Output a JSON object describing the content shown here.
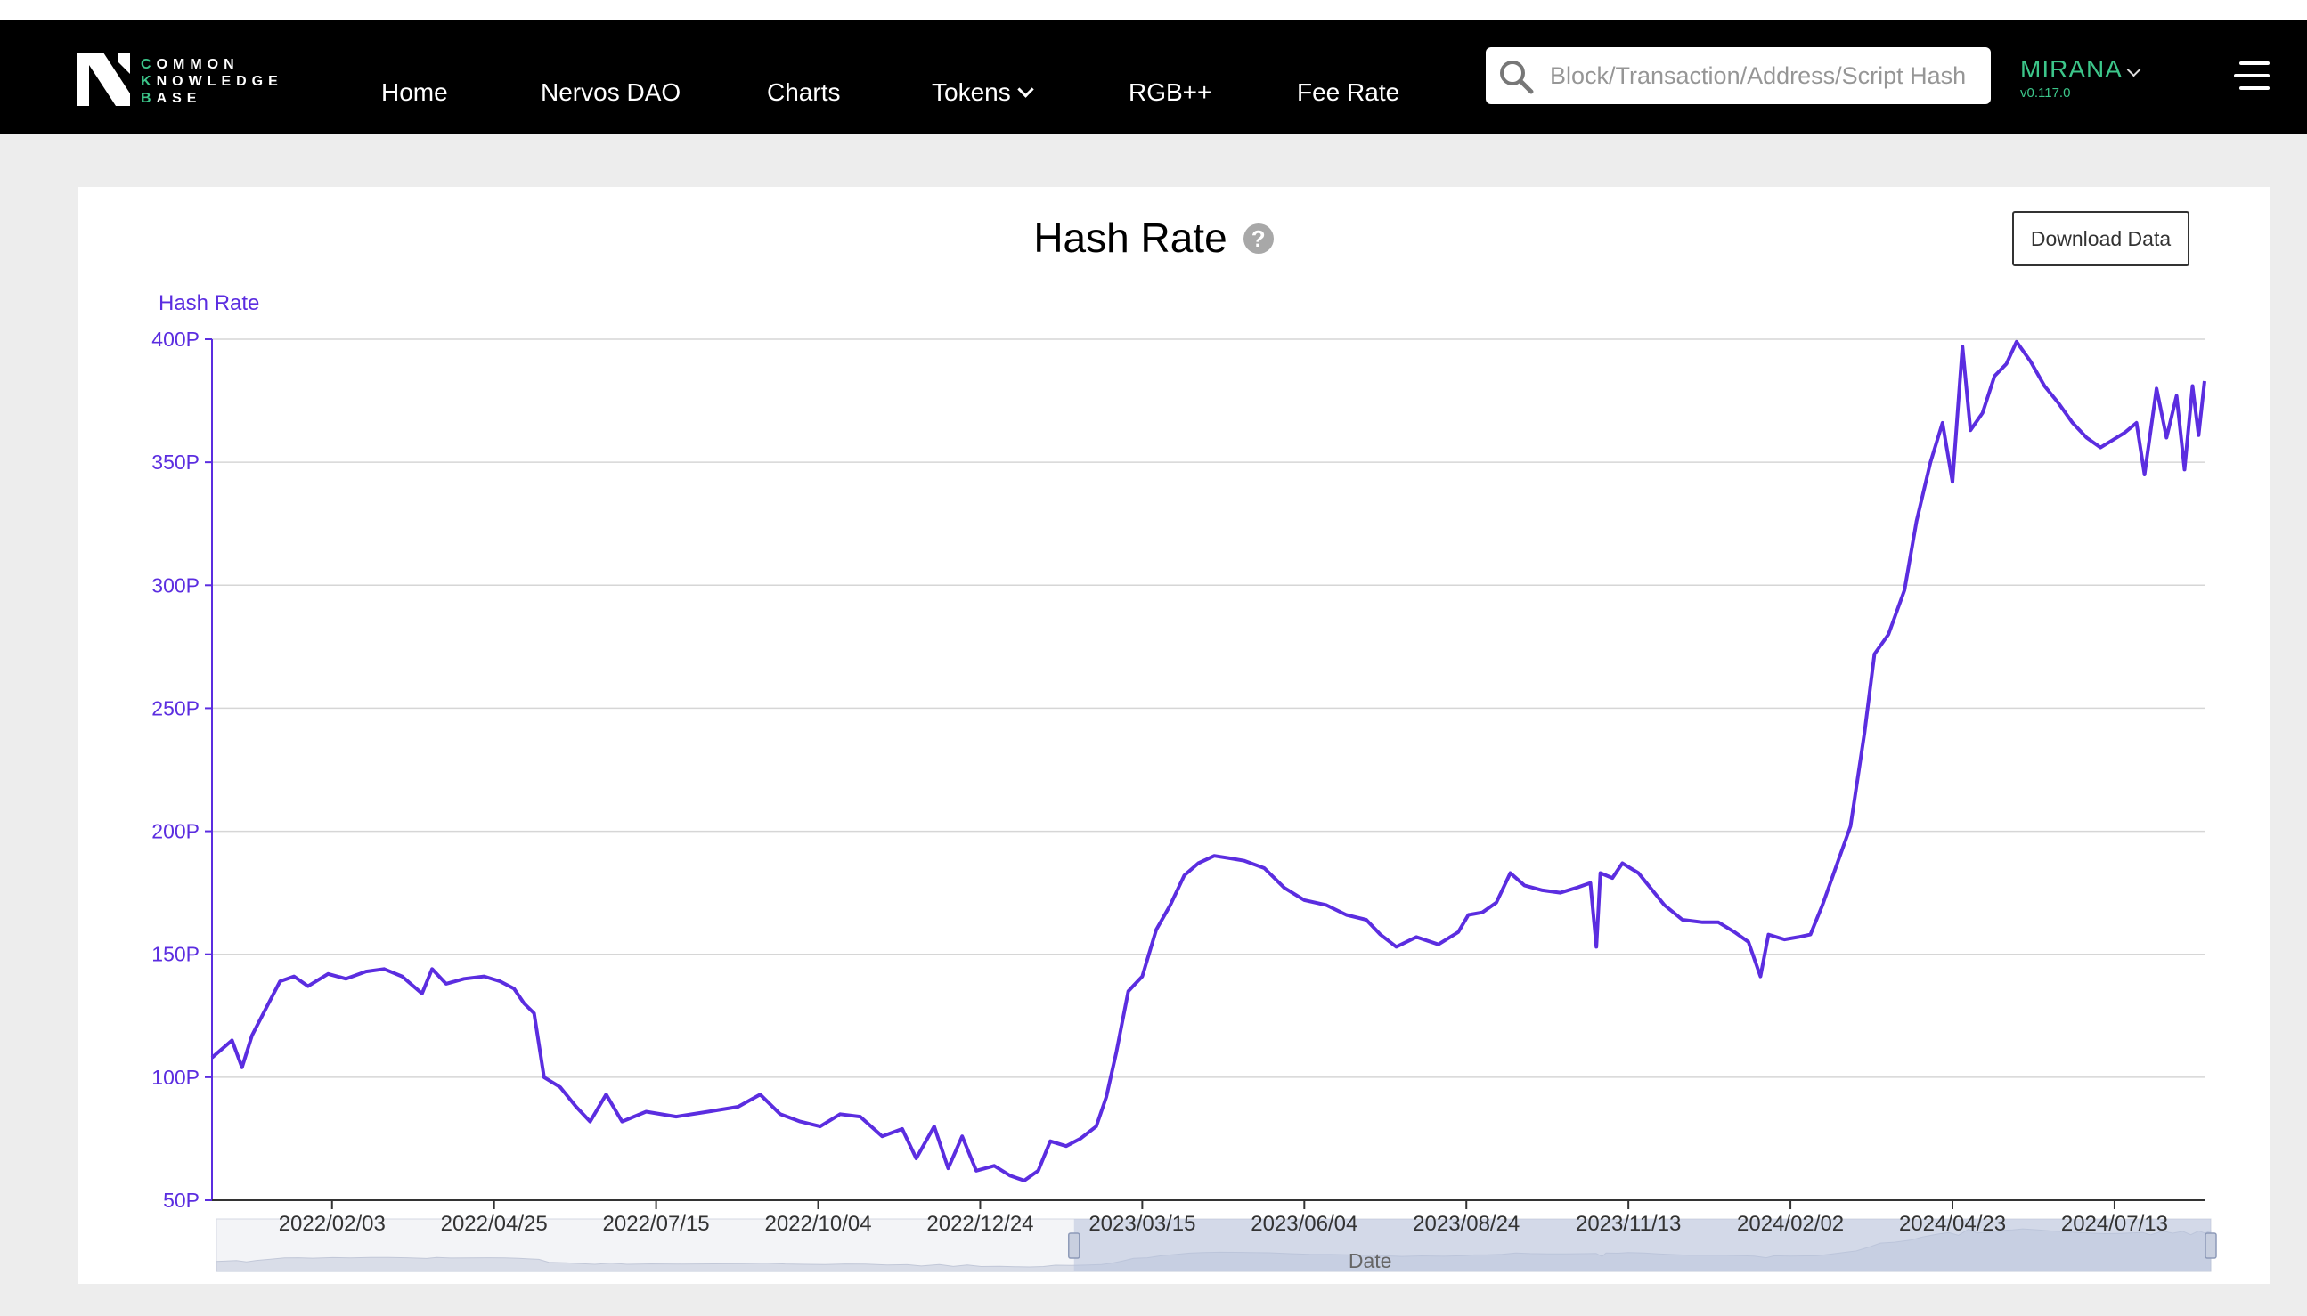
{
  "brand": {
    "lines": [
      "COMMON",
      "KNOWLEDGE",
      "BASE"
    ]
  },
  "nav": {
    "items": [
      {
        "label": "Home"
      },
      {
        "label": "Nervos DAO"
      },
      {
        "label": "Charts"
      },
      {
        "label": "Tokens"
      },
      {
        "label": "RGB++"
      },
      {
        "label": "Fee Rate"
      }
    ]
  },
  "search": {
    "placeholder": "Block/Transaction/Address/Script Hash"
  },
  "network": {
    "name": "MIRANA",
    "version": "v0.117.0"
  },
  "colors": {
    "brand_green": "#3cc68a",
    "series": "#5b2de0",
    "navbar": "#000000"
  },
  "page": {
    "title": "Hash Rate",
    "help_icon": "question-circle-icon",
    "download_label": "Download Data"
  },
  "chart_data": {
    "type": "line",
    "title": "Hash Rate",
    "ylabel": "Hash Rate",
    "xlabel": "Date",
    "y_unit": "P",
    "ylim": [
      50,
      400
    ],
    "y_ticks": [
      "50P",
      "100P",
      "150P",
      "200P",
      "250P",
      "300P",
      "350P",
      "400P"
    ],
    "x_tick_labels": [
      "2022/02/03",
      "2022/04/25",
      "2022/07/15",
      "2022/10/04",
      "2022/12/24",
      "2023/03/15",
      "2023/06/04",
      "2023/08/24",
      "2023/11/13",
      "2024/02/02",
      "2024/04/23",
      "2024/07/13"
    ],
    "x_range": [
      "2021/12/05",
      "2024/08/27"
    ],
    "grid": true,
    "legend": "none",
    "zoom_window": [
      0.43,
      1.0
    ],
    "series": [
      {
        "color": "#5b2de0",
        "points": [
          [
            "2021/12/05",
            108
          ],
          [
            "2021/12/15",
            115
          ],
          [
            "2021/12/20",
            104
          ],
          [
            "2021/12/25",
            117
          ],
          [
            "2022/01/01",
            128
          ],
          [
            "2022/01/08",
            139
          ],
          [
            "2022/01/15",
            141
          ],
          [
            "2022/01/22",
            137
          ],
          [
            "2022/02/01",
            142
          ],
          [
            "2022/02/10",
            140
          ],
          [
            "2022/02/20",
            143
          ],
          [
            "2022/03/01",
            144
          ],
          [
            "2022/03/10",
            141
          ],
          [
            "2022/03/20",
            134
          ],
          [
            "2022/03/25",
            144
          ],
          [
            "2022/04/01",
            138
          ],
          [
            "2022/04/10",
            140
          ],
          [
            "2022/04/20",
            141
          ],
          [
            "2022/04/28",
            139
          ],
          [
            "2022/05/05",
            136
          ],
          [
            "2022/05/10",
            130
          ],
          [
            "2022/05/15",
            126
          ],
          [
            "2022/05/20",
            100
          ],
          [
            "2022/05/28",
            96
          ],
          [
            "2022/06/05",
            88
          ],
          [
            "2022/06/12",
            82
          ],
          [
            "2022/06/20",
            93
          ],
          [
            "2022/06/28",
            82
          ],
          [
            "2022/07/10",
            86
          ],
          [
            "2022/07/25",
            84
          ],
          [
            "2022/08/10",
            86
          ],
          [
            "2022/08/25",
            88
          ],
          [
            "2022/09/05",
            93
          ],
          [
            "2022/09/15",
            85
          ],
          [
            "2022/09/25",
            82
          ],
          [
            "2022/10/05",
            80
          ],
          [
            "2022/10/15",
            85
          ],
          [
            "2022/10/25",
            84
          ],
          [
            "2022/11/05",
            76
          ],
          [
            "2022/11/15",
            79
          ],
          [
            "2022/11/22",
            67
          ],
          [
            "2022/12/01",
            80
          ],
          [
            "2022/12/08",
            63
          ],
          [
            "2022/12/15",
            76
          ],
          [
            "2022/12/22",
            62
          ],
          [
            "2022/12/31",
            64
          ],
          [
            "2023/01/08",
            60
          ],
          [
            "2023/01/15",
            58
          ],
          [
            "2023/01/22",
            62
          ],
          [
            "2023/01/28",
            74
          ],
          [
            "2023/02/05",
            72
          ],
          [
            "2023/02/12",
            75
          ],
          [
            "2023/02/20",
            80
          ],
          [
            "2023/02/25",
            92
          ],
          [
            "2023/03/02",
            110
          ],
          [
            "2023/03/08",
            135
          ],
          [
            "2023/03/15",
            141
          ],
          [
            "2023/03/22",
            160
          ],
          [
            "2023/03/29",
            170
          ],
          [
            "2023/04/05",
            182
          ],
          [
            "2023/04/12",
            187
          ],
          [
            "2023/04/20",
            190
          ],
          [
            "2023/04/28",
            189
          ],
          [
            "2023/05/05",
            188
          ],
          [
            "2023/05/15",
            185
          ],
          [
            "2023/05/25",
            177
          ],
          [
            "2023/06/04",
            172
          ],
          [
            "2023/06/15",
            170
          ],
          [
            "2023/06/25",
            166
          ],
          [
            "2023/07/05",
            164
          ],
          [
            "2023/07/12",
            158
          ],
          [
            "2023/07/20",
            153
          ],
          [
            "2023/07/30",
            157
          ],
          [
            "2023/08/10",
            154
          ],
          [
            "2023/08/20",
            159
          ],
          [
            "2023/08/25",
            166
          ],
          [
            "2023/09/01",
            167
          ],
          [
            "2023/09/08",
            171
          ],
          [
            "2023/09/15",
            183
          ],
          [
            "2023/09/22",
            178
          ],
          [
            "2023/10/01",
            176
          ],
          [
            "2023/10/10",
            175
          ],
          [
            "2023/10/18",
            177
          ],
          [
            "2023/10/25",
            179
          ],
          [
            "2023/10/28",
            153
          ],
          [
            "2023/10/30",
            183
          ],
          [
            "2023/11/05",
            181
          ],
          [
            "2023/11/10",
            187
          ],
          [
            "2023/11/18",
            183
          ],
          [
            "2023/11/25",
            176
          ],
          [
            "2023/12/01",
            170
          ],
          [
            "2023/12/10",
            164
          ],
          [
            "2023/12/20",
            163
          ],
          [
            "2023/12/28",
            163
          ],
          [
            "2024/01/05",
            159
          ],
          [
            "2024/01/12",
            155
          ],
          [
            "2024/01/18",
            141
          ],
          [
            "2024/01/22",
            158
          ],
          [
            "2024/01/30",
            156
          ],
          [
            "2024/02/06",
            157
          ],
          [
            "2024/02/12",
            158
          ],
          [
            "2024/02/18",
            170
          ],
          [
            "2024/02/25",
            186
          ],
          [
            "2024/03/03",
            202
          ],
          [
            "2024/03/10",
            240
          ],
          [
            "2024/03/15",
            272
          ],
          [
            "2024/03/22",
            280
          ],
          [
            "2024/03/30",
            298
          ],
          [
            "2024/04/05",
            326
          ],
          [
            "2024/04/12",
            350
          ],
          [
            "2024/04/18",
            366
          ],
          [
            "2024/04/23",
            342
          ],
          [
            "2024/04/28",
            397
          ],
          [
            "2024/05/02",
            363
          ],
          [
            "2024/05/08",
            370
          ],
          [
            "2024/05/14",
            385
          ],
          [
            "2024/05/20",
            390
          ],
          [
            "2024/05/25",
            399
          ],
          [
            "2024/06/01",
            391
          ],
          [
            "2024/06/08",
            381
          ],
          [
            "2024/06/15",
            374
          ],
          [
            "2024/06/22",
            366
          ],
          [
            "2024/06/29",
            360
          ],
          [
            "2024/07/06",
            356
          ],
          [
            "2024/07/12",
            359
          ],
          [
            "2024/07/18",
            362
          ],
          [
            "2024/07/24",
            366
          ],
          [
            "2024/07/28",
            345
          ],
          [
            "2024/08/03",
            380
          ],
          [
            "2024/08/08",
            360
          ],
          [
            "2024/08/13",
            377
          ],
          [
            "2024/08/17",
            347
          ],
          [
            "2024/08/21",
            381
          ],
          [
            "2024/08/24",
            361
          ],
          [
            "2024/08/27",
            383
          ]
        ]
      }
    ]
  }
}
